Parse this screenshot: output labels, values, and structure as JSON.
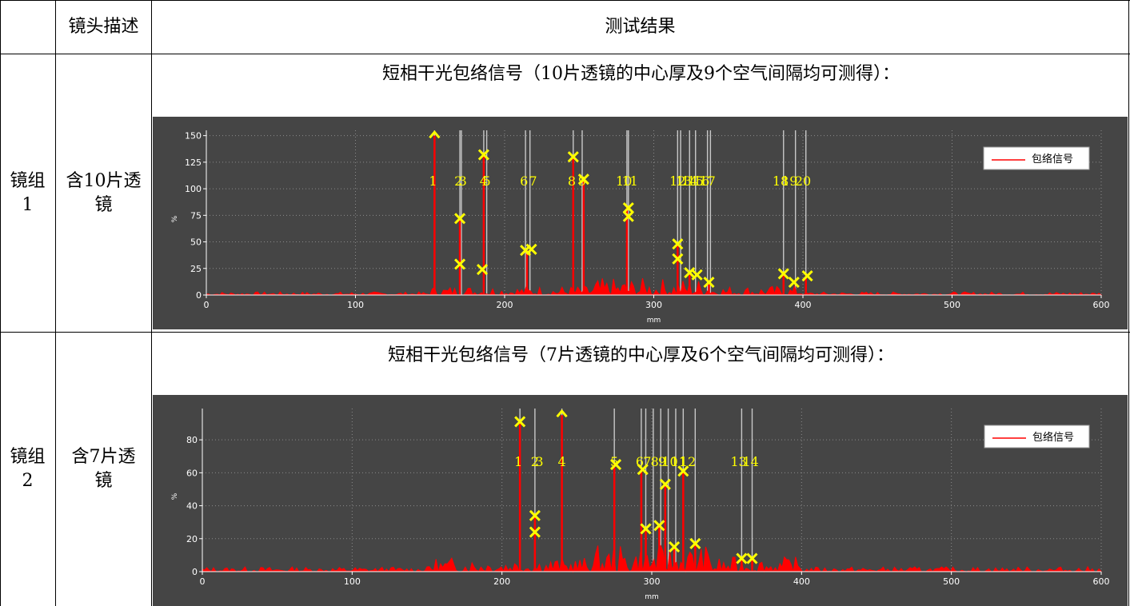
{
  "table": {
    "headers": [
      "",
      "镜头描述",
      "测试结果"
    ],
    "rows": [
      {
        "group": "镜组1",
        "group_lines": [
          "镜组",
          "1"
        ],
        "desc_lines": [
          "含10片透",
          "镜"
        ],
        "caption": "短相干光包络信号（10片透镜的中心厚及9个空气间隔均可测得）："
      },
      {
        "group": "镜组2",
        "group_lines": [
          "镜组",
          "2"
        ],
        "desc_lines": [
          "含7片透",
          "镜"
        ],
        "caption": "短相干光包络信号（7片透镜的中心厚及6个空气间隔均可测得）："
      }
    ]
  },
  "colors": {
    "chart_bg": "#454545",
    "plot_bg": "#ffffff",
    "signal": "#ff0000",
    "marker": "#ffff00",
    "guide_line": "#c8c8c8"
  },
  "chart_data": [
    {
      "type": "line",
      "title": "",
      "xlabel": "mm",
      "ylabel": "%",
      "xlim": [
        0,
        600
      ],
      "ylim": [
        0,
        155
      ],
      "xticks": [
        0,
        100,
        200,
        300,
        400,
        500,
        600
      ],
      "yticks": [
        0,
        25,
        50,
        75,
        100,
        125,
        150
      ],
      "grid": true,
      "legend": {
        "position": "top-right",
        "entries": [
          "包络信号"
        ]
      },
      "series": [
        {
          "name": "包络信号",
          "color": "#ff0000"
        }
      ],
      "peaks": [
        {
          "x": 153,
          "y": 150
        },
        {
          "x": 170,
          "y": 72
        },
        {
          "x": 186,
          "y": 132
        },
        {
          "x": 215,
          "y": 42
        },
        {
          "x": 246,
          "y": 130
        },
        {
          "x": 253,
          "y": 110
        },
        {
          "x": 282,
          "y": 82
        },
        {
          "x": 316,
          "y": 48
        },
        {
          "x": 324,
          "y": 21
        },
        {
          "x": 337,
          "y": 12
        },
        {
          "x": 387,
          "y": 20
        },
        {
          "x": 402,
          "y": 18
        }
      ],
      "guide_lines_x": [
        153,
        170,
        171,
        186,
        188,
        214,
        217,
        246,
        252,
        282,
        283,
        316,
        318,
        324,
        328,
        336,
        338,
        387,
        395,
        402
      ],
      "guide_labels": [
        {
          "text": "1",
          "x": 152
        },
        {
          "text": "2",
          "x": 169
        },
        {
          "text": "3",
          "x": 172
        },
        {
          "text": "4",
          "x": 186
        },
        {
          "text": "5",
          "x": 188
        },
        {
          "text": "6",
          "x": 213
        },
        {
          "text": "7",
          "x": 219
        },
        {
          "text": "8",
          "x": 245
        },
        {
          "text": "9",
          "x": 252
        },
        {
          "text": "10",
          "x": 280
        },
        {
          "text": "11",
          "x": 284
        },
        {
          "text": "12",
          "x": 316
        },
        {
          "text": "13",
          "x": 320
        },
        {
          "text": "14",
          "x": 324
        },
        {
          "text": "15",
          "x": 328
        },
        {
          "text": "16",
          "x": 332
        },
        {
          "text": "17",
          "x": 336
        },
        {
          "text": "18",
          "x": 385
        },
        {
          "text": "19",
          "x": 391
        },
        {
          "text": "20",
          "x": 400
        }
      ],
      "guide_label_y": 103,
      "markers": [
        {
          "x": 153,
          "y": 151,
          "kind": "peak"
        },
        {
          "x": 170,
          "y": 72
        },
        {
          "x": 170,
          "y": 29
        },
        {
          "x": 186,
          "y": 132
        },
        {
          "x": 185,
          "y": 24
        },
        {
          "x": 214,
          "y": 42
        },
        {
          "x": 218,
          "y": 43
        },
        {
          "x": 246,
          "y": 130
        },
        {
          "x": 253,
          "y": 109
        },
        {
          "x": 283,
          "y": 82
        },
        {
          "x": 283,
          "y": 74
        },
        {
          "x": 316,
          "y": 48
        },
        {
          "x": 316,
          "y": 34
        },
        {
          "x": 324,
          "y": 21
        },
        {
          "x": 329,
          "y": 19
        },
        {
          "x": 337,
          "y": 12
        },
        {
          "x": 387,
          "y": 20
        },
        {
          "x": 394,
          "y": 12
        },
        {
          "x": 403,
          "y": 18
        }
      ]
    },
    {
      "type": "line",
      "title": "",
      "xlabel": "mm",
      "ylabel": "%",
      "xlim": [
        0,
        600
      ],
      "ylim": [
        0,
        99
      ],
      "xticks": [
        0,
        100,
        200,
        300,
        400,
        500,
        600
      ],
      "yticks": [
        0,
        20,
        40,
        60,
        80
      ],
      "grid": true,
      "legend": {
        "position": "top-right",
        "entries": [
          "包络信号"
        ]
      },
      "series": [
        {
          "name": "包络信号",
          "color": "#ff0000"
        }
      ],
      "peaks": [
        {
          "x": 212,
          "y": 91
        },
        {
          "x": 222,
          "y": 34
        },
        {
          "x": 240,
          "y": 95
        },
        {
          "x": 275,
          "y": 65
        },
        {
          "x": 293,
          "y": 62
        },
        {
          "x": 296,
          "y": 26
        },
        {
          "x": 305,
          "y": 28
        },
        {
          "x": 309,
          "y": 53
        },
        {
          "x": 315,
          "y": 15
        },
        {
          "x": 321,
          "y": 61
        },
        {
          "x": 329,
          "y": 17
        },
        {
          "x": 360,
          "y": 8
        },
        {
          "x": 367,
          "y": 8
        }
      ],
      "guide_lines_x": [
        212,
        222,
        240,
        275,
        293,
        296,
        301,
        306,
        311,
        316,
        321,
        329,
        360,
        367
      ],
      "guide_labels": [
        {
          "text": "1",
          "x": 211
        },
        {
          "text": "2",
          "x": 222
        },
        {
          "text": "3",
          "x": 225
        },
        {
          "text": "4",
          "x": 240
        },
        {
          "text": "5",
          "x": 275
        },
        {
          "text": "6",
          "x": 292
        },
        {
          "text": "7",
          "x": 297
        },
        {
          "text": "8",
          "x": 302
        },
        {
          "text": "9",
          "x": 307
        },
        {
          "text": "10",
          "x": 312
        },
        {
          "text": "11",
          "x": 318
        },
        {
          "text": "12",
          "x": 324
        },
        {
          "text": "13",
          "x": 358
        },
        {
          "text": "14",
          "x": 366
        }
      ],
      "guide_label_y": 64,
      "markers": [
        {
          "x": 212,
          "y": 91
        },
        {
          "x": 222,
          "y": 34
        },
        {
          "x": 222,
          "y": 24
        },
        {
          "x": 240,
          "y": 96,
          "kind": "peak"
        },
        {
          "x": 276,
          "y": 65
        },
        {
          "x": 294,
          "y": 62
        },
        {
          "x": 296,
          "y": 26
        },
        {
          "x": 305,
          "y": 28
        },
        {
          "x": 309,
          "y": 53
        },
        {
          "x": 315,
          "y": 15
        },
        {
          "x": 321,
          "y": 61
        },
        {
          "x": 329,
          "y": 17
        },
        {
          "x": 360,
          "y": 8
        },
        {
          "x": 367,
          "y": 8
        }
      ]
    }
  ]
}
